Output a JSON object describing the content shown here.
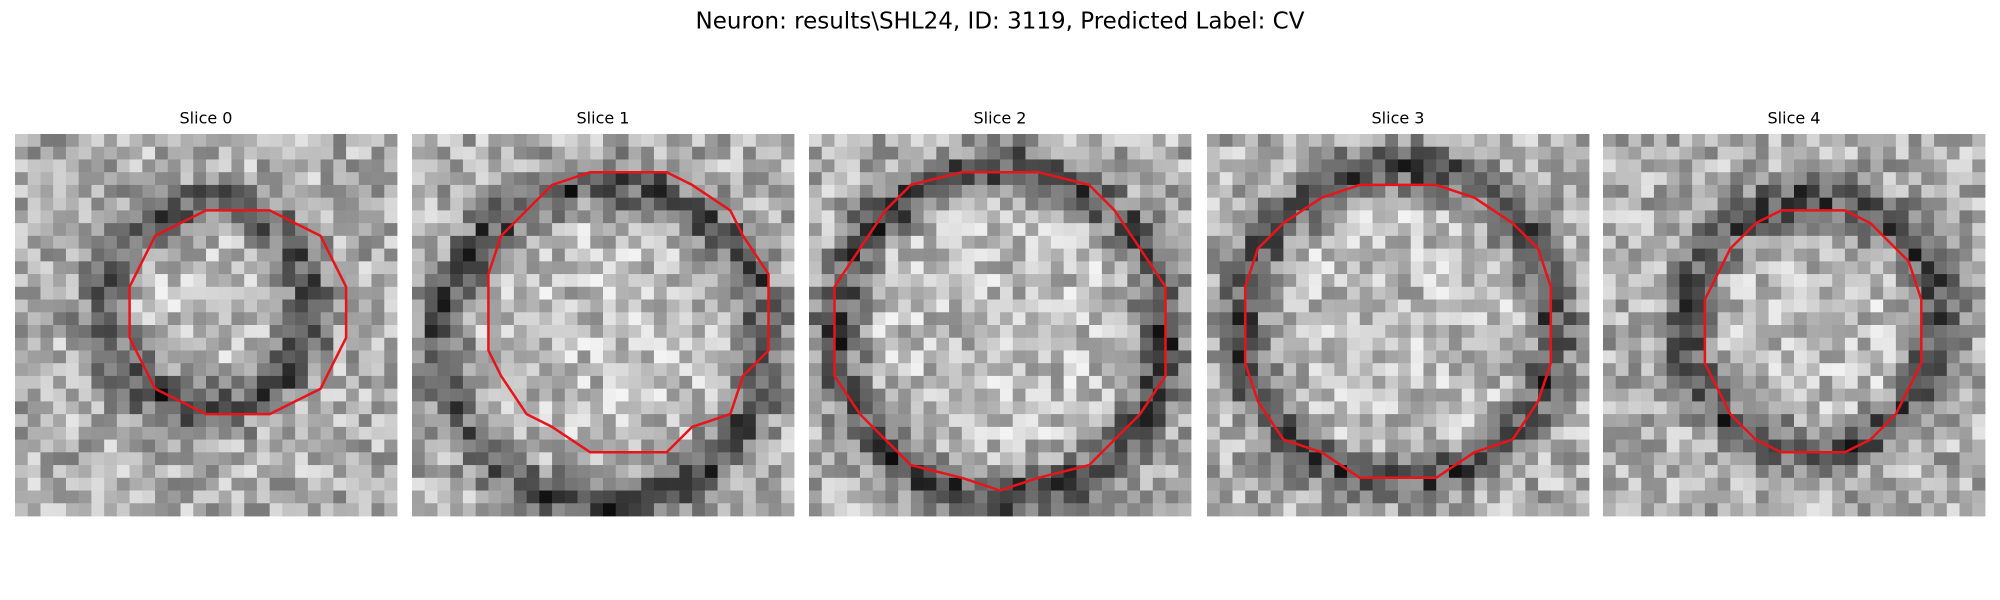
{
  "title": "Neuron: results\\SHL24, ID: 3119, Predicted Label: CV",
  "panels": [
    {
      "title": "Slice 0"
    },
    {
      "title": "Slice 1"
    },
    {
      "title": "Slice 2"
    },
    {
      "title": "Slice 3"
    },
    {
      "title": "Slice 4"
    }
  ]
}
